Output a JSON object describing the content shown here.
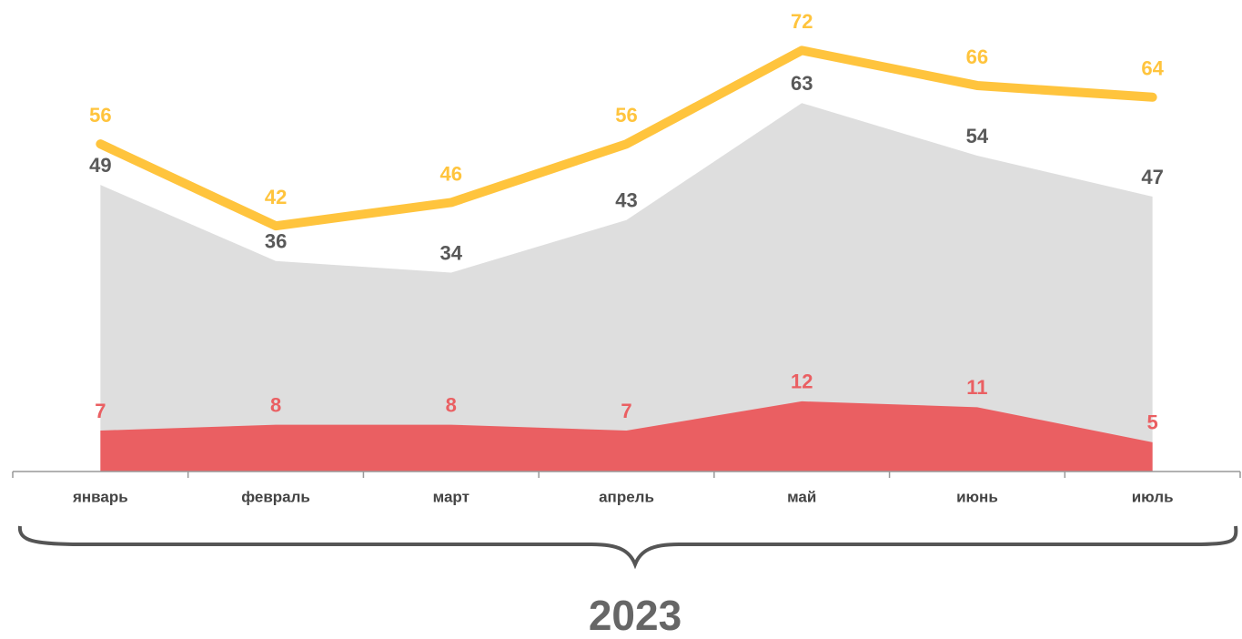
{
  "chart_data": {
    "type": "area",
    "categories": [
      "январь",
      "февраль",
      "март",
      "апрель",
      "май",
      "июнь",
      "июль"
    ],
    "series": [
      {
        "type": "area",
        "color": "#dedede",
        "label_color": "#595959",
        "values": [
          49,
          36,
          34,
          43,
          63,
          54,
          47
        ]
      },
      {
        "type": "area",
        "color": "#ea5f62",
        "label_color": "#ea5f62",
        "values": [
          7,
          8,
          8,
          7,
          12,
          11,
          5
        ]
      },
      {
        "type": "line",
        "color": "#ffc43d",
        "label_color": "#ffc43d",
        "values": [
          56,
          42,
          46,
          56,
          72,
          66,
          64
        ]
      }
    ],
    "ylim": [
      0,
      80
    ],
    "xlabel": "2023"
  }
}
